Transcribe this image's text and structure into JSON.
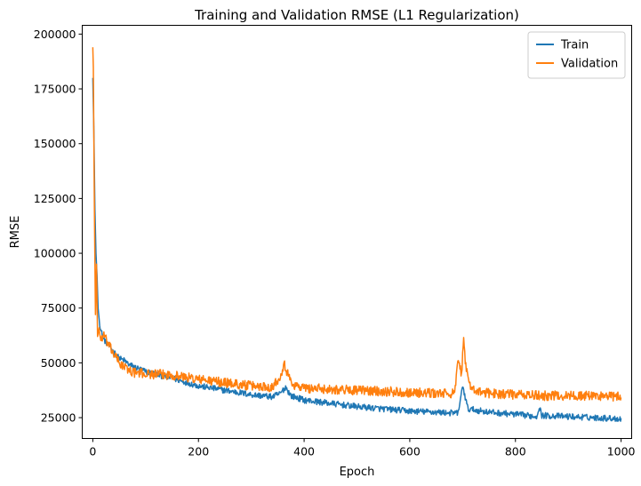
{
  "chart_data": {
    "type": "line",
    "title": "Training and Validation RMSE (L1 Regularization)",
    "xlabel": "Epoch",
    "ylabel": "RMSE",
    "xlim": [
      -20,
      1020
    ],
    "ylim": [
      15500,
      204000
    ],
    "xticks": [
      0,
      200,
      400,
      600,
      800,
      1000
    ],
    "yticks": [
      25000,
      50000,
      75000,
      100000,
      125000,
      150000,
      175000,
      200000
    ],
    "grid": false,
    "legend": {
      "position": "top-right"
    },
    "series": [
      {
        "name": "Train",
        "color": "#1f77b4",
        "anchors": [
          [
            0,
            180000
          ],
          [
            2,
            156000
          ],
          [
            4,
            120000
          ],
          [
            6,
            100000
          ],
          [
            8,
            90000
          ],
          [
            10,
            75000
          ],
          [
            12,
            70000
          ],
          [
            15,
            65000
          ],
          [
            20,
            61000
          ],
          [
            30,
            58000
          ],
          [
            40,
            55000
          ],
          [
            50,
            52000
          ],
          [
            60,
            51000
          ],
          [
            70,
            49000
          ],
          [
            80,
            48000
          ],
          [
            100,
            46000
          ],
          [
            150,
            43000
          ],
          [
            200,
            39500
          ],
          [
            250,
            37500
          ],
          [
            300,
            35500
          ],
          [
            340,
            34500
          ],
          [
            355,
            36000
          ],
          [
            365,
            39000
          ],
          [
            375,
            35000
          ],
          [
            400,
            33000
          ],
          [
            450,
            31500
          ],
          [
            500,
            30000
          ],
          [
            550,
            29000
          ],
          [
            600,
            28000
          ],
          [
            650,
            27500
          ],
          [
            690,
            27000
          ],
          [
            695,
            31000
          ],
          [
            700,
            40000
          ],
          [
            705,
            34000
          ],
          [
            710,
            29000
          ],
          [
            750,
            27500
          ],
          [
            800,
            26500
          ],
          [
            840,
            25500
          ],
          [
            845,
            30000
          ],
          [
            850,
            26000
          ],
          [
            900,
            25500
          ],
          [
            950,
            25000
          ],
          [
            1000,
            24500
          ]
        ],
        "noise": 1400
      },
      {
        "name": "Validation",
        "color": "#ff7f0e",
        "anchors": [
          [
            0,
            194000
          ],
          [
            1,
            185000
          ],
          [
            3,
            120000
          ],
          [
            5,
            72000
          ],
          [
            7,
            95000
          ],
          [
            9,
            62000
          ],
          [
            12,
            66000
          ],
          [
            15,
            60000
          ],
          [
            20,
            63000
          ],
          [
            30,
            58000
          ],
          [
            40,
            54000
          ],
          [
            50,
            50000
          ],
          [
            60,
            48000
          ],
          [
            70,
            46500
          ],
          [
            80,
            45500
          ],
          [
            100,
            45000
          ],
          [
            150,
            44500
          ],
          [
            200,
            42500
          ],
          [
            250,
            41000
          ],
          [
            300,
            39500
          ],
          [
            340,
            39000
          ],
          [
            355,
            44000
          ],
          [
            362,
            50000
          ],
          [
            370,
            44000
          ],
          [
            380,
            40000
          ],
          [
            400,
            38500
          ],
          [
            450,
            38000
          ],
          [
            500,
            37500
          ],
          [
            550,
            37000
          ],
          [
            600,
            36500
          ],
          [
            650,
            36000
          ],
          [
            685,
            36000
          ],
          [
            692,
            52000
          ],
          [
            698,
            44000
          ],
          [
            702,
            63000
          ],
          [
            706,
            48000
          ],
          [
            712,
            40000
          ],
          [
            730,
            36500
          ],
          [
            800,
            35500
          ],
          [
            850,
            35000
          ],
          [
            900,
            35000
          ],
          [
            950,
            35000
          ],
          [
            1000,
            34500
          ]
        ],
        "noise": 2200
      }
    ]
  }
}
